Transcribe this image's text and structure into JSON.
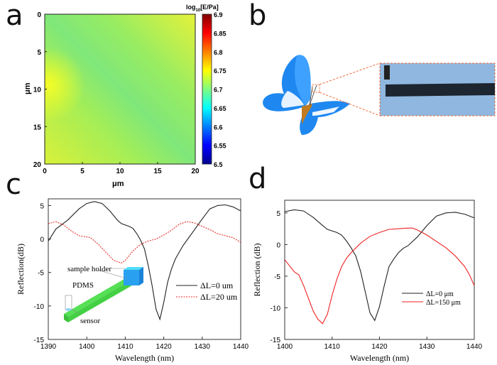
{
  "panel_labels": [
    "a",
    "b",
    "c",
    "d"
  ],
  "chart_data": [
    {
      "panel": "a",
      "type": "heatmap",
      "xlabel": "μm",
      "ylabel": "μm",
      "xticks": [
        "0",
        "5",
        "10",
        "15",
        "20"
      ],
      "yticks": [
        "0",
        "5",
        "10",
        "15",
        "20"
      ],
      "xlim": [
        0,
        20
      ],
      "ylim": [
        0,
        20
      ],
      "colorbar": {
        "label_base": "log",
        "label_sub": "10",
        "label_rest": "[E/Pa]",
        "range": [
          6.5,
          6.9
        ],
        "ticks": [
          "6.9",
          "6.85",
          "6.8",
          "6.75",
          "6.7",
          "6.65",
          "6.6",
          "6.55",
          "6.5"
        ],
        "colormap": "jet"
      },
      "description_values": {
        "typical": 6.7,
        "min_band": 6.67,
        "max_corner": 6.75
      }
    },
    {
      "panel": "c",
      "type": "line",
      "xlabel": "Wavelength (nm)",
      "ylabel": "Reflection(dB)",
      "xlim": [
        1390,
        1440
      ],
      "ylim": [
        -15,
        6
      ],
      "xticks": [
        "1390",
        "1400",
        "1410",
        "1420",
        "1430",
        "1440"
      ],
      "yticks": [
        "5",
        "0",
        "-5",
        "-10",
        "-15"
      ],
      "legend_position": "center-right",
      "inset_labels": [
        "sample holder",
        "PDMS",
        "sensor"
      ],
      "series": [
        {
          "name": "ΔL=0 um",
          "color": "#222222",
          "style": "solid",
          "x": [
            1390,
            1392,
            1395,
            1398,
            1400,
            1402,
            1404,
            1406,
            1408,
            1409,
            1411,
            1412,
            1413,
            1414,
            1415,
            1416,
            1417,
            1418,
            1419,
            1420,
            1421,
            1422,
            1423,
            1424,
            1425,
            1426,
            1428,
            1430,
            1432,
            1434,
            1436,
            1438,
            1440
          ],
          "y": [
            -0.3,
            1.5,
            2.8,
            4.5,
            5.3,
            5.6,
            5.3,
            4.2,
            2.8,
            2.3,
            1.9,
            1.6,
            0.8,
            -0.2,
            -1.5,
            -4,
            -7,
            -10.5,
            -12,
            -9.5,
            -6.5,
            -4.5,
            -3,
            -2,
            -1,
            -0.2,
            1.4,
            3,
            4.5,
            5,
            5.1,
            4.8,
            4.2
          ]
        },
        {
          "name": "ΔL=20 um",
          "color": "#e8302a",
          "style": "dotted",
          "x": [
            1390,
            1392,
            1394,
            1396,
            1398,
            1401,
            1403,
            1405,
            1407,
            1409,
            1410,
            1412,
            1414,
            1416,
            1418,
            1420,
            1422,
            1424,
            1426,
            1428,
            1430,
            1432,
            1434,
            1436,
            1438,
            1440
          ],
          "y": [
            2.3,
            2.6,
            2.1,
            1.2,
            0.5,
            0.2,
            -0.8,
            -2,
            -3.2,
            -3.6,
            -3.2,
            -1.8,
            -0.8,
            -0.3,
            0,
            0.6,
            1.3,
            2.2,
            2.6,
            2.4,
            1.9,
            1.4,
            0.8,
            0.5,
            0.2,
            -0.5
          ]
        }
      ]
    },
    {
      "panel": "d",
      "type": "line",
      "xlabel": "Wavelength (nm)",
      "ylabel": "Reflection (dB)",
      "xlim": [
        1400,
        1440
      ],
      "ylim": [
        -15,
        7
      ],
      "xticks": [
        "1400",
        "1410",
        "1420",
        "1430",
        "1440"
      ],
      "yticks": [
        "5",
        "0",
        "-5",
        "-10",
        "-15"
      ],
      "legend_position": "center-right",
      "series": [
        {
          "name": "ΔL=0 μm",
          "color": "#222222",
          "style": "solid",
          "x": [
            1400,
            1402,
            1404,
            1406,
            1408,
            1409,
            1411,
            1412,
            1413,
            1414,
            1415,
            1416,
            1417,
            1418,
            1419,
            1420,
            1421,
            1422,
            1423,
            1424,
            1425,
            1426,
            1428,
            1430,
            1432,
            1434,
            1436,
            1438,
            1440
          ],
          "y": [
            5.2,
            5.5,
            5.3,
            4.3,
            3,
            2.4,
            1.9,
            1.5,
            0.6,
            -0.5,
            -1.8,
            -4.2,
            -7.5,
            -10.8,
            -12,
            -9.8,
            -6.5,
            -3.5,
            -2.3,
            -1.3,
            -0.6,
            -0.2,
            1.2,
            3,
            4.5,
            5,
            5.1,
            4.8,
            4.2
          ]
        },
        {
          "name": "ΔL=150 μm",
          "color": "#ee2222",
          "style": "solid",
          "x": [
            1400,
            1402,
            1403,
            1404,
            1405,
            1406,
            1407,
            1408,
            1409,
            1410,
            1411,
            1412,
            1413,
            1414,
            1416,
            1418,
            1420,
            1422,
            1424,
            1426,
            1427,
            1428,
            1430,
            1432,
            1434,
            1436,
            1438,
            1439,
            1440
          ],
          "y": [
            -2.4,
            -4.3,
            -4.8,
            -6.5,
            -8.5,
            -10.5,
            -11.8,
            -12.5,
            -11,
            -8,
            -5.5,
            -3.5,
            -2.2,
            -1.3,
            0.2,
            1.3,
            1.9,
            2.4,
            2.5,
            2.6,
            2.6,
            2.3,
            1.5,
            0.5,
            -0.5,
            -1.8,
            -3.5,
            -4.8,
            -6.5
          ]
        }
      ]
    }
  ],
  "colors": {
    "highlight_box": "#f26b3a",
    "inset_bg": "#8fb7e0"
  }
}
